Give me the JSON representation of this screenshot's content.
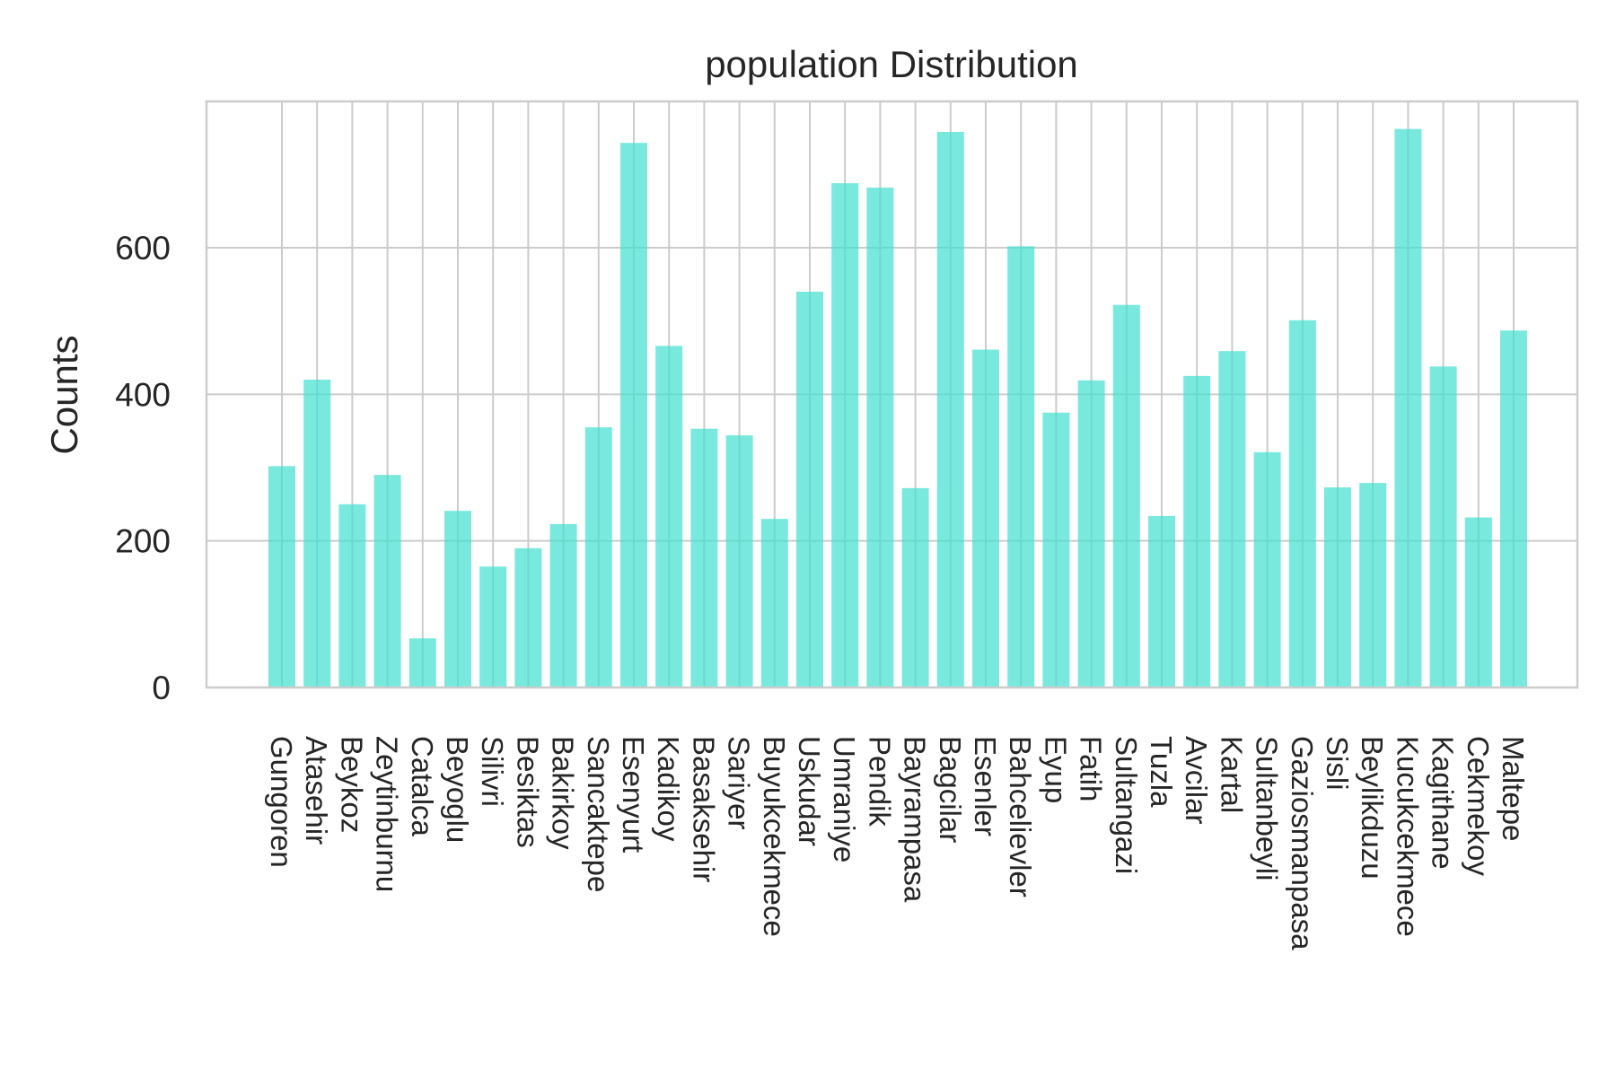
{
  "chart_data": {
    "type": "bar",
    "title": "population Distribution",
    "xlabel": "",
    "ylabel": "Counts",
    "ylim": [
      0,
      800
    ],
    "yticks": [
      0,
      200,
      400,
      600
    ],
    "grid": true,
    "bar_color": "#40E0D0",
    "categories": [
      "Gungoren",
      "Atasehir",
      "Beykoz",
      "Zeytinburnu",
      "Catalca",
      "Beyoglu",
      "Silivri",
      "Besiktas",
      "Bakirkoy",
      "Sancaktepe",
      "Esenyurt",
      "Kadikoy",
      "Basaksehir",
      "Sariyer",
      "Buyukcekmece",
      "Uskudar",
      "Umraniye",
      "Pendik",
      "Bayrampasa",
      "Bagcilar",
      "Esenler",
      "Bahcelievler",
      "Eyup",
      "Fatih",
      "Sultangazi",
      "Tuzla",
      "Avcilar",
      "Kartal",
      "Sultanbeyli",
      "Gaziosmanpasa",
      "Sisli",
      "Beylikduzu",
      "Kucukcekmece",
      "Kagithane",
      "Cekmekoy",
      "Maltepe"
    ],
    "values": [
      302,
      420,
      250,
      290,
      67,
      241,
      165,
      190,
      223,
      355,
      743,
      466,
      353,
      344,
      230,
      540,
      688,
      682,
      272,
      758,
      461,
      602,
      375,
      419,
      522,
      234,
      425,
      459,
      321,
      501,
      273,
      279,
      762,
      438,
      232,
      487
    ]
  }
}
